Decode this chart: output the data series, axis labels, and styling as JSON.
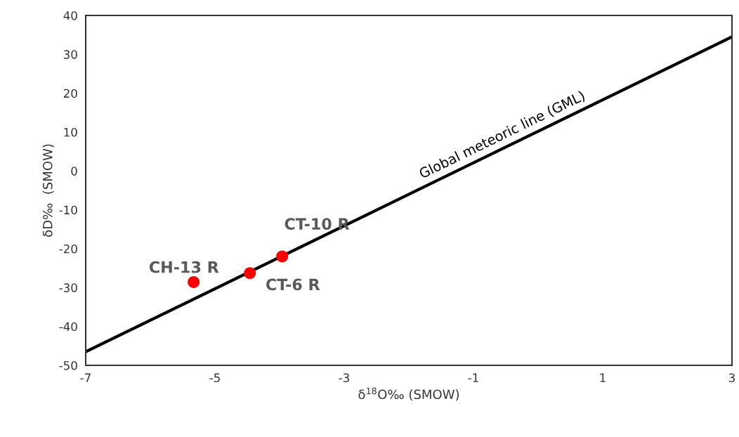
{
  "chart_data": {
    "type": "scatter",
    "xlabel": "δ$^{18}$O‰ (SMOW)",
    "ylabel": "δD‰  (SMOW)",
    "xlim": [
      -7,
      3
    ],
    "ylim": [
      -50,
      40
    ],
    "xticks": [
      -7,
      -5,
      -3,
      -1,
      1,
      3
    ],
    "yticks": [
      -50,
      -40,
      -30,
      -20,
      -10,
      0,
      10,
      20,
      30,
      40
    ],
    "grid": false,
    "series": [
      {
        "type": "line",
        "color": "#000000",
        "x": [
          -7,
          3
        ],
        "values": [
          -46.5,
          34.5
        ]
      },
      {
        "marker": "circle",
        "color": "#ff0000",
        "x": [
          -5.33,
          -4.46,
          -3.96
        ],
        "values": [
          -28.6,
          -26.3,
          -22.0
        ]
      }
    ],
    "annotations": [
      {
        "text": "Global meteoric line (GML)",
        "x": -0.55,
        "y": 5.6
      },
      {
        "text": "CH-13 R",
        "x": -5.33,
        "y": -28.6
      },
      {
        "text": "CT-6 R",
        "x": -4.46,
        "y": -26.3
      },
      {
        "text": "CT-10 R",
        "x": -3.96,
        "y": -22.0
      }
    ]
  }
}
